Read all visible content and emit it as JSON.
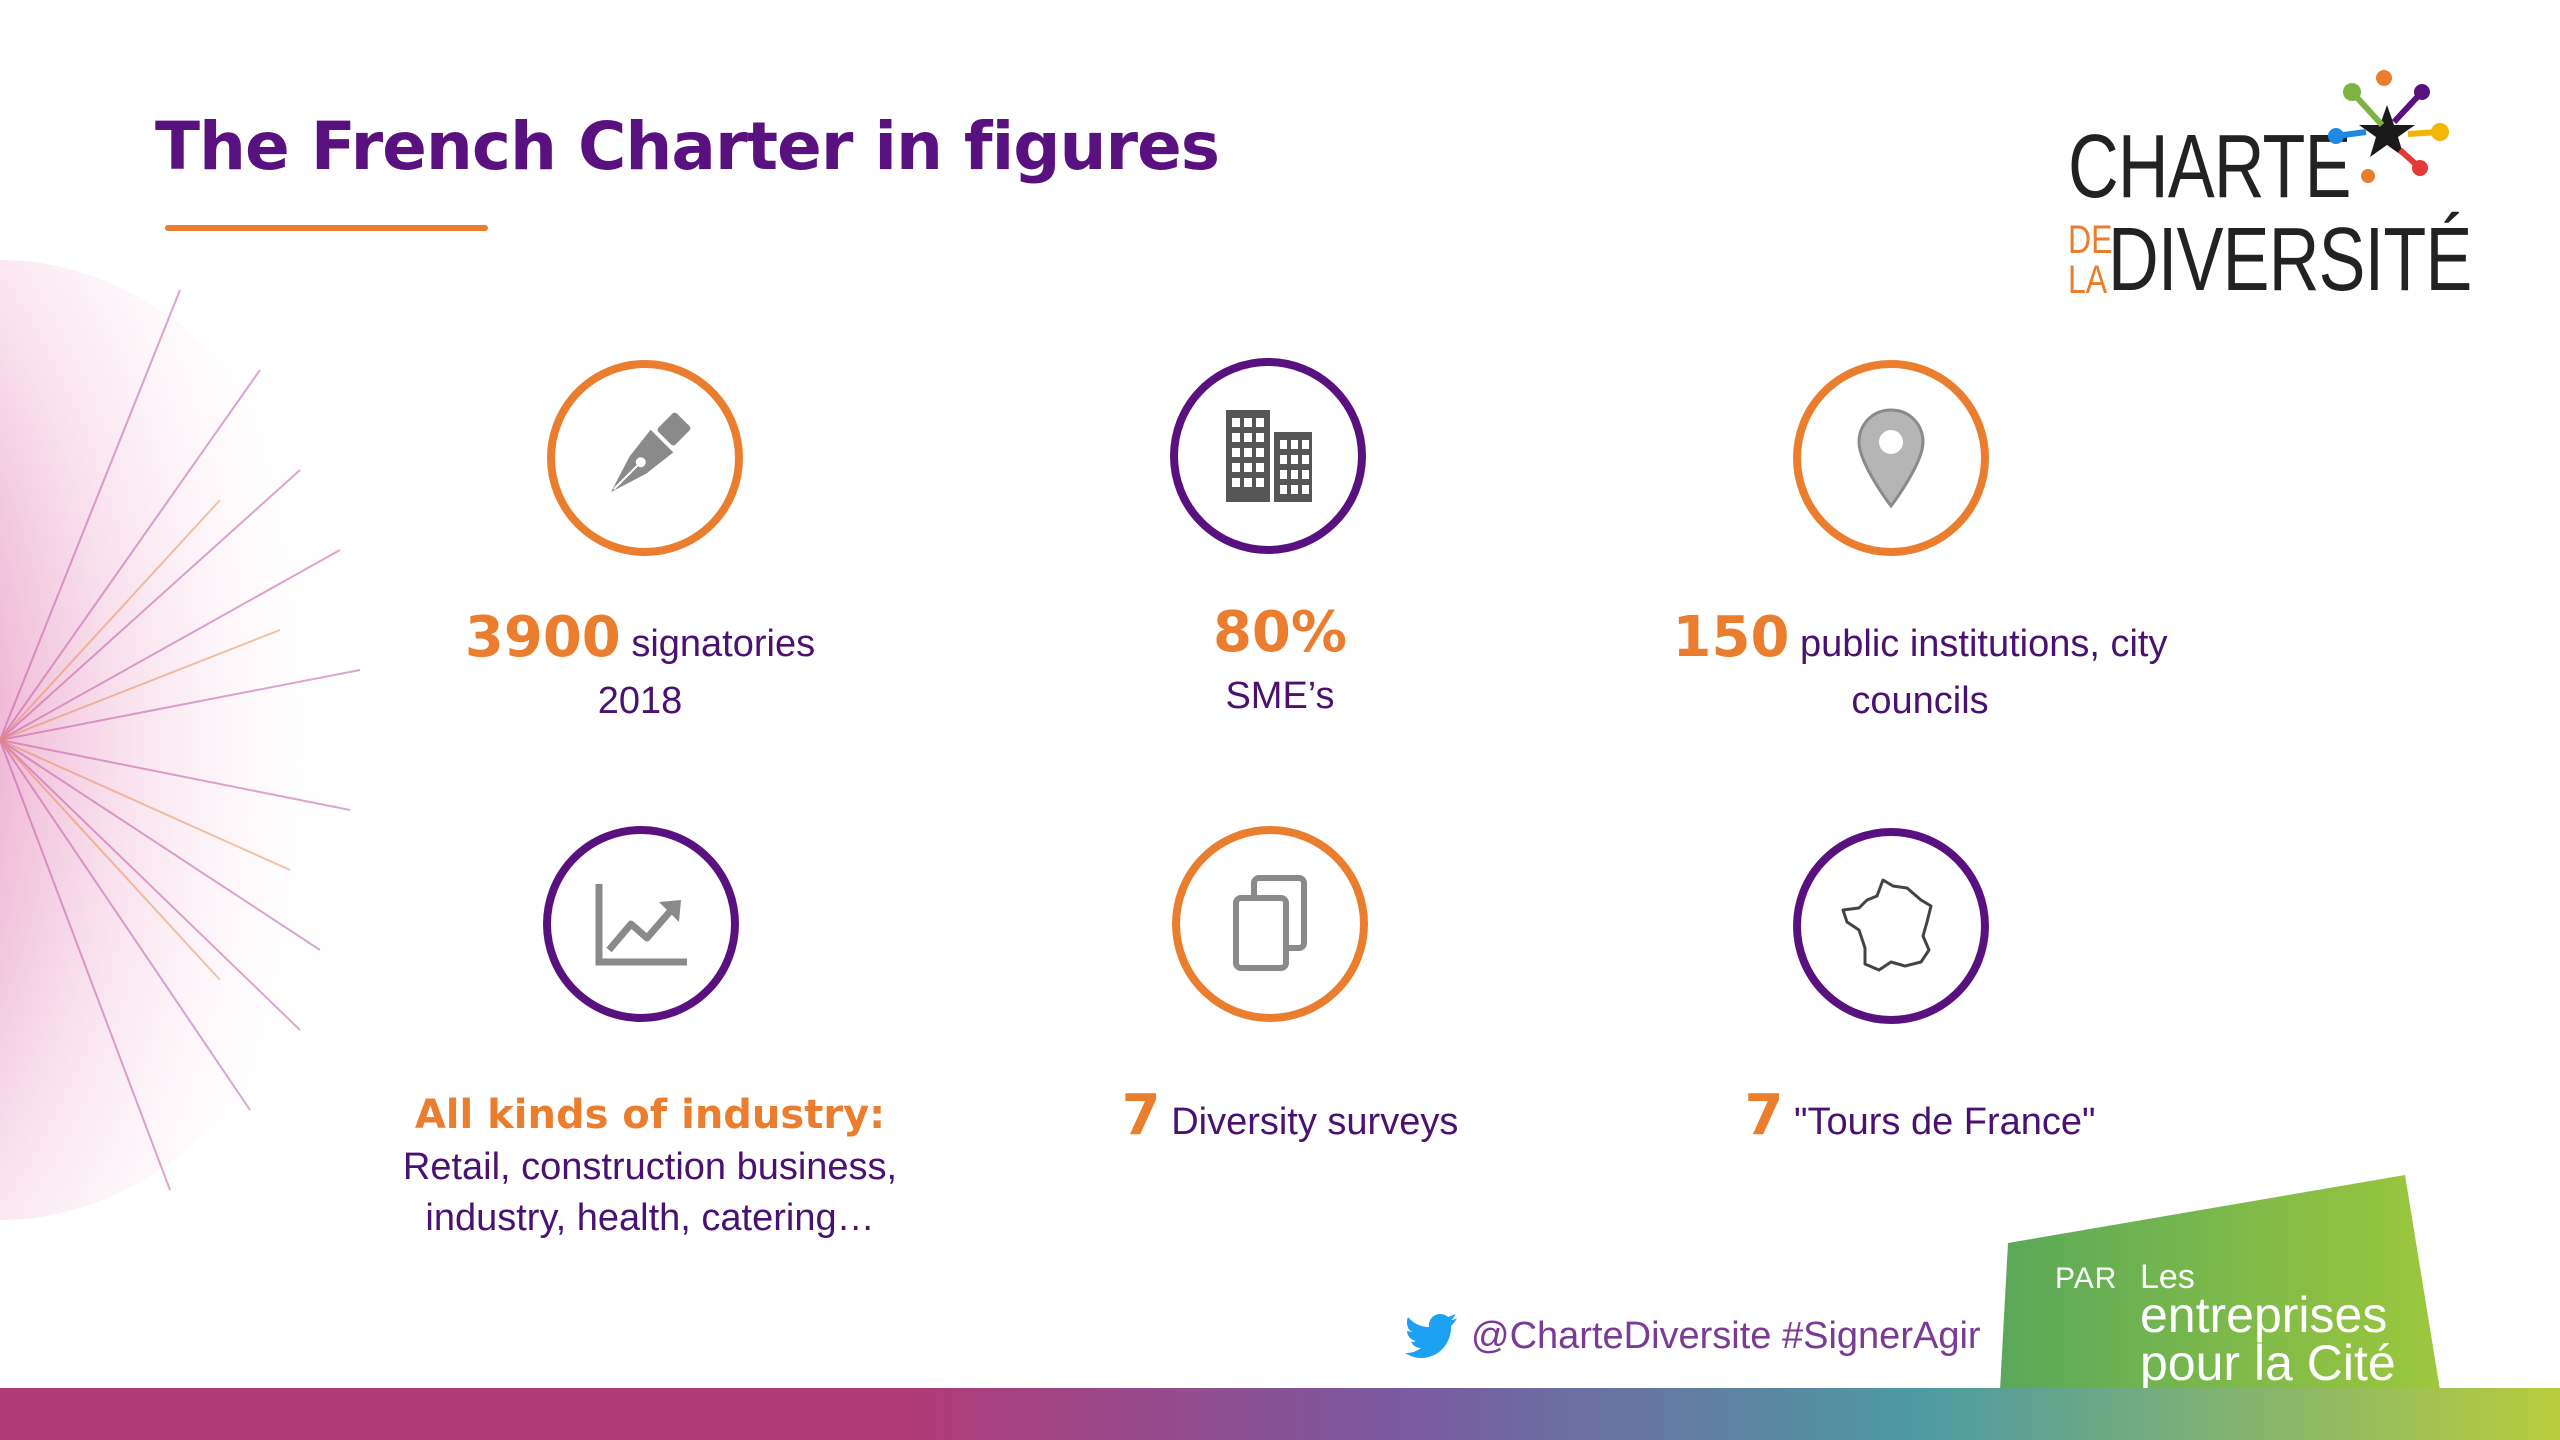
{
  "title": "The French Charter in figures",
  "logo": {
    "line1": "CHARTE",
    "small_de": "DE",
    "small_la": "LA",
    "line2": "DIVERSITÉ"
  },
  "colors": {
    "purple": "#5a1180",
    "orange": "#ea7d2e",
    "icon_gray": "#8a8a8a"
  },
  "stats": [
    {
      "icon": "fountain-pen-icon",
      "ring": "orange",
      "big": "3900",
      "text": "signatories",
      "line2": "2018"
    },
    {
      "icon": "buildings-icon",
      "ring": "purple",
      "big": "80%",
      "line2": "SME’s"
    },
    {
      "icon": "map-pin-icon",
      "ring": "orange",
      "big": "150",
      "text": "public institutions, city",
      "line2": "councils"
    },
    {
      "icon": "trend-chart-icon",
      "ring": "purple",
      "heading": "All kinds of industry:",
      "line2": "Retail, construction business,",
      "line3": "industry, health, catering…"
    },
    {
      "icon": "documents-icon",
      "ring": "orange",
      "big": "7",
      "text": "Diversity  surveys"
    },
    {
      "icon": "france-map-icon",
      "ring": "purple",
      "big": "7",
      "text": "\"Tours de France\""
    }
  ],
  "footer": {
    "twitter_text": "@CharteDiversite #SignerAgir",
    "badge_par": "PAR",
    "badge_les": "Les",
    "badge_entreprises": "entreprises",
    "badge_pour": "pour la Cité"
  }
}
